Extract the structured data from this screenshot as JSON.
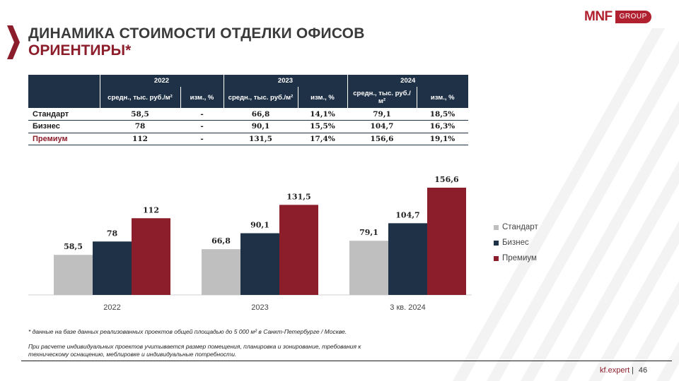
{
  "slide": {
    "title": "ДИНАМИКА СТОИМОСТИ ОТДЕЛКИ ОФИСОВ",
    "subtitle": "ОРИЕНТИРЫ*",
    "logo_mark": "MNF",
    "logo_group": "GROUP",
    "footnote": "* данные на базе данных реализованных проектов общей площадью до 5 000 м² в Санкт-Петербурге / Москве.",
    "note": "При расчете индивидуальных проектов учитывается размер помещения, планировка и зонирование, требования к техническому оснащению, меблировке и индивидуальные потребности.",
    "site": "kf.expert",
    "separator": "|",
    "page_number": "46",
    "colors": {
      "standard": "#bfbfbf",
      "business": "#1f3147",
      "premium": "#8c1d2a",
      "header_bg": "#1f3147"
    }
  },
  "table": {
    "years": [
      "2022",
      "2023",
      "2024"
    ],
    "headers_2022": [
      "средн., тыс. руб./м²",
      "изм., %"
    ],
    "headers_2023": [
      "средн., тыс. руб./м²",
      "изм., %"
    ],
    "headers_2024": [
      "средн., тыс. руб./м²",
      "изм., %"
    ],
    "rows": [
      {
        "label": "Стандарт",
        "cells": [
          "58,5",
          "-",
          "66,8",
          "14,1%",
          "79,1",
          "18,5%"
        ]
      },
      {
        "label": "Бизнес",
        "cells": [
          "78",
          "-",
          "90,1",
          "15,5%",
          "104,7",
          "16,3%"
        ]
      },
      {
        "label": "Премиум",
        "cells": [
          "112",
          "-",
          "131,5",
          "17,4%",
          "156,6",
          "19,1%"
        ]
      }
    ]
  },
  "chart_data": {
    "type": "bar",
    "categories": [
      "2022",
      "2023",
      "3 кв. 2024"
    ],
    "series": [
      {
        "name": "Стандарт",
        "values": [
          58.5,
          66.8,
          79.1
        ],
        "labels": [
          "58,5",
          "66,8",
          "79,1"
        ],
        "color": "#bfbfbf"
      },
      {
        "name": "Бизнес",
        "values": [
          78,
          90.1,
          104.7
        ],
        "labels": [
          "78",
          "90,1",
          "104,7"
        ],
        "color": "#1f3147"
      },
      {
        "name": "Премиум",
        "values": [
          112,
          131.5,
          156.6
        ],
        "labels": [
          "112",
          "131,5",
          "156,6"
        ],
        "color": "#8c1d2a"
      }
    ],
    "ylim": [
      0,
      156.6
    ],
    "grid": false,
    "legend": "right"
  }
}
